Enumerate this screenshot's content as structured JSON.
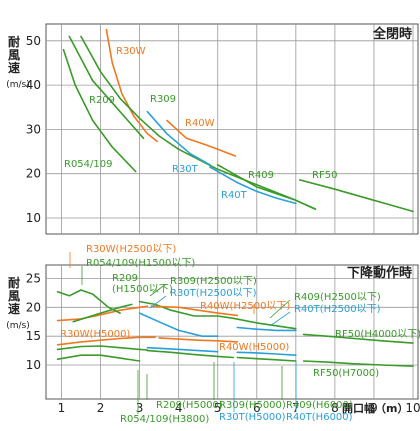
{
  "chart_data": [
    {
      "type": "line",
      "title": "全閉時",
      "ylabel": "耐風速",
      "yunit": "(m/s)",
      "xlim": [
        1,
        10
      ],
      "ylim": [
        7,
        53
      ],
      "y_ticks": [
        10,
        20,
        30,
        40,
        50
      ],
      "grid": true,
      "colors": {
        "orange": "#f07820",
        "green": "#3a9a2a",
        "blue": "#2aa0d8"
      },
      "series": [
        {
          "name": "R30W",
          "color": "orange",
          "points": [
            [
              2.15,
              52.5
            ],
            [
              2.3,
              45
            ],
            [
              2.55,
              38
            ],
            [
              2.85,
              33
            ],
            [
              3.2,
              29
            ],
            [
              3.45,
              27.3
            ]
          ]
        },
        {
          "name": "R309",
          "color": "green",
          "points": [
            [
              1.5,
              51
            ],
            [
              2.0,
              43
            ],
            [
              2.5,
              37
            ],
            [
              3.0,
              32.5
            ],
            [
              3.5,
              28.5
            ],
            [
              4.0,
              25.5
            ],
            [
              5.0,
              21
            ],
            [
              6.0,
              17.5
            ],
            [
              7.0,
              14
            ],
            [
              7.5,
              12
            ]
          ]
        },
        {
          "name": "R054/109",
          "color": "green",
          "points": [
            [
              1.05,
              48
            ],
            [
              1.35,
              40
            ],
            [
              1.8,
              32
            ],
            [
              2.3,
              26
            ],
            [
              2.9,
              20.5
            ]
          ]
        },
        {
          "name": "R209",
          "color": "green",
          "points": [
            [
              1.2,
              51
            ],
            [
              1.8,
              41
            ],
            [
              2.3,
              36
            ],
            [
              2.8,
              31
            ],
            [
              3.1,
              28
            ]
          ]
        },
        {
          "name": "R40W",
          "color": "orange",
          "points": [
            [
              3.7,
              32
            ],
            [
              4.2,
              28
            ],
            [
              4.7,
              26.5
            ],
            [
              5.0,
              25.5
            ],
            [
              5.45,
              24
            ]
          ]
        },
        {
          "name": "R30T",
          "color": "blue",
          "points": [
            [
              3.2,
              34
            ],
            [
              3.7,
              29
            ],
            [
              4.3,
              24.5
            ],
            [
              4.8,
              22
            ]
          ]
        },
        {
          "name": "R409",
          "color": "green",
          "points": [
            [
              5.0,
              22
            ],
            [
              6.0,
              17
            ],
            [
              7.0,
              14
            ],
            [
              7.5,
              12
            ]
          ]
        },
        {
          "name": "R40T",
          "color": "blue",
          "points": [
            [
              4.8,
              21.5
            ],
            [
              5.5,
              18
            ],
            [
              6.0,
              16
            ],
            [
              6.5,
              14.5
            ],
            [
              7.0,
              13.3
            ]
          ]
        },
        {
          "name": "RF50",
          "color": "green",
          "points": [
            [
              7.1,
              18.6
            ],
            [
              8.0,
              16.5
            ],
            [
              9.0,
              14
            ],
            [
              10.0,
              11.5
            ]
          ]
        }
      ]
    },
    {
      "type": "line",
      "title": "下降動作時",
      "ylabel": "耐風速",
      "yunit": "(m/s)",
      "xlabel": "開口幅（m）",
      "xlim": [
        0.8,
        10
      ],
      "x_ticks": [
        1,
        2,
        3,
        4,
        5,
        6,
        7,
        8,
        9,
        10
      ],
      "ylim": [
        7.5,
        27
      ],
      "y_ticks": [
        10,
        15,
        20,
        25
      ],
      "grid": true,
      "series": [
        {
          "name": "R30W(H2500以下)",
          "color": "orange",
          "points": [
            [
              0.9,
              17.7
            ],
            [
              1.5,
              18
            ],
            [
              2.0,
              18.7
            ],
            [
              2.5,
              19.5
            ],
            [
              3.0,
              20
            ],
            [
              3.2,
              20.2
            ]
          ]
        },
        {
          "name": "R054/109(H1500以下)",
          "color": "green",
          "points": [
            [
              0.9,
              22.7
            ],
            [
              1.2,
              22
            ],
            [
              1.5,
              23
            ],
            [
              1.8,
              22.3
            ],
            [
              2.2,
              20
            ],
            [
              2.5,
              19
            ]
          ]
        },
        {
          "name": "R209(H1500以下)",
          "color": "green",
          "points": [
            [
              1.3,
              17.5
            ],
            [
              2.0,
              19
            ],
            [
              2.5,
              20
            ],
            [
              2.8,
              20.5
            ]
          ]
        },
        {
          "name": "R309(H2500以下)",
          "color": "green",
          "points": [
            [
              3.0,
              21
            ],
            [
              3.4,
              20.5
            ],
            [
              3.8,
              19.5
            ],
            [
              4.4,
              18.5
            ],
            [
              5.0,
              18.5
            ],
            [
              5.4,
              18.1
            ]
          ]
        },
        {
          "name": "R30T(H2500以下)",
          "color": "blue",
          "points": [
            [
              3.0,
              19
            ],
            [
              3.5,
              17.5
            ],
            [
              4.0,
              16
            ],
            [
              4.6,
              15
            ],
            [
              5.0,
              15
            ]
          ]
        },
        {
          "name": "R40W(H2500以下)",
          "color": "orange",
          "points": [
            [
              3.3,
              20.2
            ],
            [
              4.0,
              20
            ],
            [
              4.5,
              19.5
            ],
            [
              5.0,
              19
            ],
            [
              5.5,
              18.6
            ]
          ]
        },
        {
          "name": "R409(H2500以下)",
          "color": "green",
          "points": [
            [
              5.4,
              18.1
            ],
            [
              6.0,
              17.3
            ],
            [
              6.5,
              16.8
            ],
            [
              7.0,
              16.3
            ]
          ]
        },
        {
          "name": "R40T(H2500以下)",
          "color": "blue",
          "points": [
            [
              5.5,
              16.5
            ],
            [
              6.0,
              16.2
            ],
            [
              6.5,
              16
            ],
            [
              7.0,
              16
            ]
          ]
        },
        {
          "name": "RF50(H4000以下)",
          "color": "green",
          "points": [
            [
              7.2,
              15.3
            ],
            [
              7.8,
              15
            ],
            [
              8.5,
              14.6
            ],
            [
              9.2,
              14.2
            ],
            [
              10.0,
              13.8
            ]
          ]
        },
        {
          "name": "R30W(H5000)",
          "color": "orange",
          "points": [
            [
              0.9,
              13.5
            ],
            [
              1.5,
              14
            ],
            [
              2.0,
              14.3
            ],
            [
              2.5,
              14.6
            ],
            [
              3.0,
              14.8
            ],
            [
              3.4,
              14.8
            ]
          ]
        },
        {
          "name": "R054/109(H3800)",
          "color": "green",
          "points": [
            [
              0.9,
              11
            ],
            [
              1.5,
              11.7
            ],
            [
              2.0,
              11.7
            ],
            [
              2.5,
              11.2
            ],
            [
              3.0,
              10.7
            ]
          ]
        },
        {
          "name": "R209(H5000)",
          "color": "green",
          "points": [
            [
              0.9,
              12.7
            ],
            [
              1.5,
              13.2
            ],
            [
              2.0,
              13.3
            ],
            [
              2.5,
              13
            ],
            [
              3.0,
              12.7
            ],
            [
              3.2,
              12.6
            ]
          ]
        },
        {
          "name": "R309(H5000)",
          "color": "green",
          "points": [
            [
              3.2,
              12.5
            ],
            [
              3.8,
              12.2
            ],
            [
              4.4,
              11.8
            ],
            [
              5.0,
              11.5
            ],
            [
              5.4,
              11.3
            ]
          ]
        },
        {
          "name": "R30T(H5000)",
          "color": "blue",
          "points": [
            [
              3.2,
              13
            ],
            [
              3.8,
              12.8
            ],
            [
              4.5,
              12.5
            ],
            [
              5.0,
              12.3
            ]
          ]
        },
        {
          "name": "R40W(H5000)",
          "color": "orange",
          "points": [
            [
              3.5,
              14.7
            ],
            [
              4.0,
              14.5
            ],
            [
              4.5,
              14.3
            ],
            [
              5.0,
              14.2
            ],
            [
              5.5,
              14
            ]
          ]
        },
        {
          "name": "R409(H6000)",
          "color": "green",
          "points": [
            [
              5.5,
              11.3
            ],
            [
              6.0,
              11.1
            ],
            [
              6.5,
              10.9
            ],
            [
              7.0,
              10.7
            ]
          ]
        },
        {
          "name": "R40T(H6000)",
          "color": "blue",
          "points": [
            [
              5.5,
              12.2
            ],
            [
              6.0,
              12.1
            ],
            [
              6.5,
              11.9
            ],
            [
              7.0,
              11.7
            ]
          ]
        },
        {
          "name": "RF50(H7000)",
          "color": "green",
          "points": [
            [
              7.2,
              10.7
            ],
            [
              7.8,
              10.5
            ],
            [
              8.5,
              10.2
            ],
            [
              9.2,
              10
            ],
            [
              10.0,
              9.8
            ]
          ]
        }
      ]
    }
  ]
}
